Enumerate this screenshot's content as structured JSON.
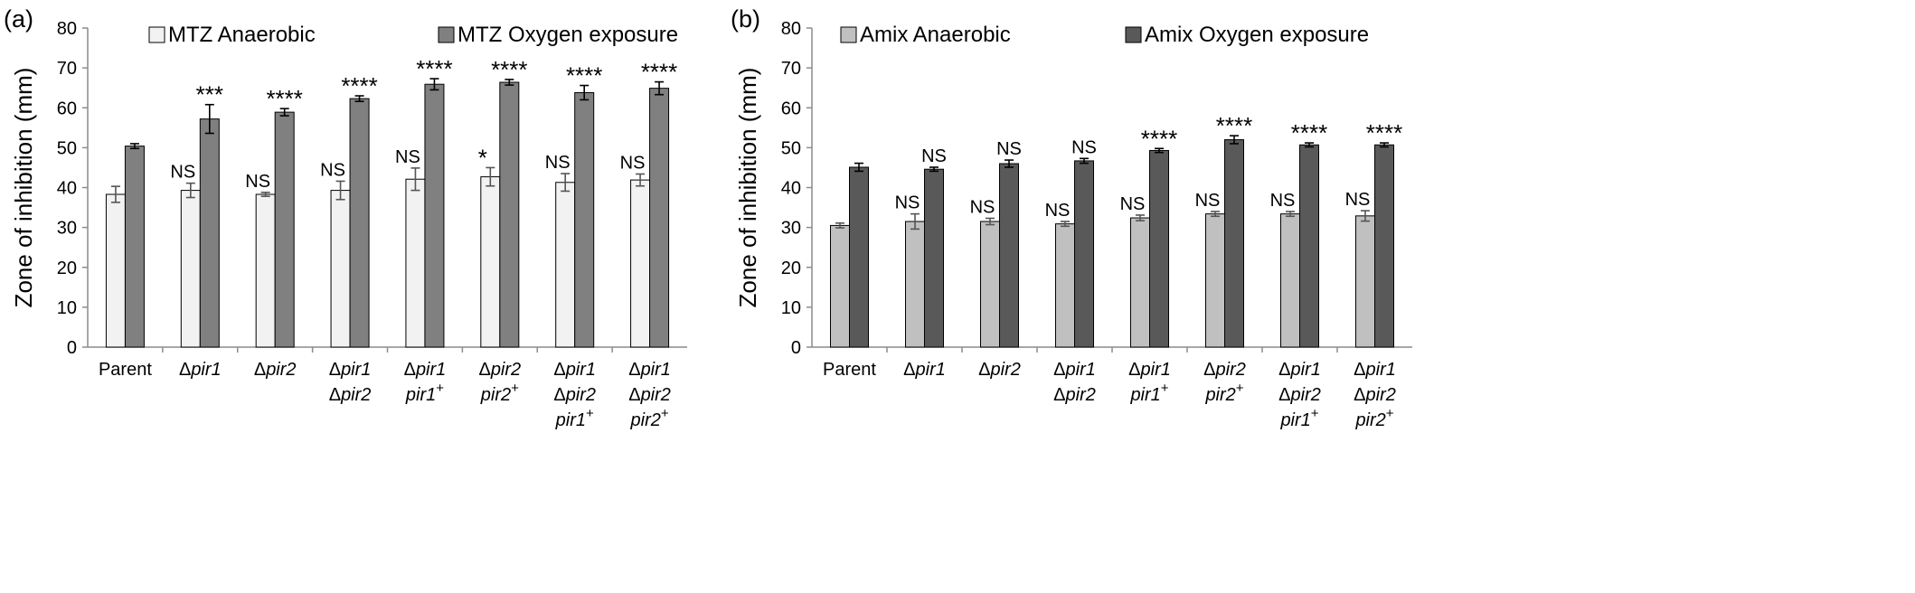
{
  "chart_data": [
    {
      "panel_label": "(a)",
      "type": "bar",
      "ylabel": "Zone of inhibition (mm)",
      "ylim": [
        0,
        80
      ],
      "yticks": [
        0,
        10,
        20,
        30,
        40,
        50,
        60,
        70,
        80
      ],
      "grid": false,
      "legend_position": "top",
      "categories": [
        [
          "Parent"
        ],
        [
          "Δpir1"
        ],
        [
          "Δpir2"
        ],
        [
          "Δpir1",
          "Δpir2"
        ],
        [
          "Δpir1",
          "pir1⁺"
        ],
        [
          "Δpir2",
          "pir2⁺"
        ],
        [
          "Δpir1",
          "Δpir2",
          "pir1⁺"
        ],
        [
          "Δpir1",
          "Δpir2",
          "pir2⁺"
        ]
      ],
      "series": [
        {
          "name": "MTZ Anaerobic",
          "color": "#f2f2f2",
          "values": [
            38.3,
            39.3,
            38.3,
            39.3,
            42.1,
            42.7,
            41.3,
            41.9
          ],
          "errors": [
            2.0,
            1.8,
            0.5,
            2.3,
            2.8,
            2.3,
            2.2,
            1.5
          ],
          "annotations": [
            "",
            "NS",
            "NS",
            "NS",
            "NS",
            "*",
            "NS",
            "NS"
          ]
        },
        {
          "name": "MTZ Oxygen exposure",
          "color": "#808080",
          "values": [
            50.4,
            57.2,
            58.9,
            62.3,
            65.9,
            66.4,
            63.8,
            64.9
          ],
          "errors": [
            0.6,
            3.6,
            0.9,
            0.7,
            1.4,
            0.7,
            1.8,
            1.6
          ],
          "annotations": [
            "",
            "***",
            "****",
            "****",
            "****",
            "****",
            "****",
            "****"
          ]
        }
      ]
    },
    {
      "panel_label": "(b)",
      "type": "bar",
      "ylabel": "Zone of inhibition (mm)",
      "ylim": [
        0,
        80
      ],
      "yticks": [
        0,
        10,
        20,
        30,
        40,
        50,
        60,
        70,
        80
      ],
      "grid": false,
      "legend_position": "top",
      "categories": [
        [
          "Parent"
        ],
        [
          "Δpir1"
        ],
        [
          "Δpir2"
        ],
        [
          "Δpir1",
          "Δpir2"
        ],
        [
          "Δpir1",
          "pir1⁺"
        ],
        [
          "Δpir2",
          "pir2⁺"
        ],
        [
          "Δpir1",
          "Δpir2",
          "pir1⁺"
        ],
        [
          "Δpir1",
          "Δpir2",
          "pir2⁺"
        ]
      ],
      "series": [
        {
          "name": "Amix Anaerobic",
          "color": "#c0c0c0",
          "values": [
            30.5,
            31.5,
            31.5,
            30.9,
            32.4,
            33.4,
            33.4,
            32.9
          ],
          "errors": [
            0.6,
            1.9,
            0.8,
            0.6,
            0.7,
            0.6,
            0.6,
            1.3
          ],
          "annotations": [
            "",
            "NS",
            "NS",
            "NS",
            "NS",
            "NS",
            "NS",
            "NS"
          ]
        },
        {
          "name": "Amix Oxygen exposure",
          "color": "#595959",
          "values": [
            45.1,
            44.6,
            46.0,
            46.7,
            49.3,
            52.0,
            50.7,
            50.7
          ],
          "errors": [
            1.0,
            0.5,
            0.9,
            0.6,
            0.5,
            1.0,
            0.5,
            0.5
          ],
          "annotations": [
            "",
            "NS",
            "NS",
            "NS",
            "****",
            "****",
            "****",
            "****"
          ]
        }
      ]
    }
  ]
}
